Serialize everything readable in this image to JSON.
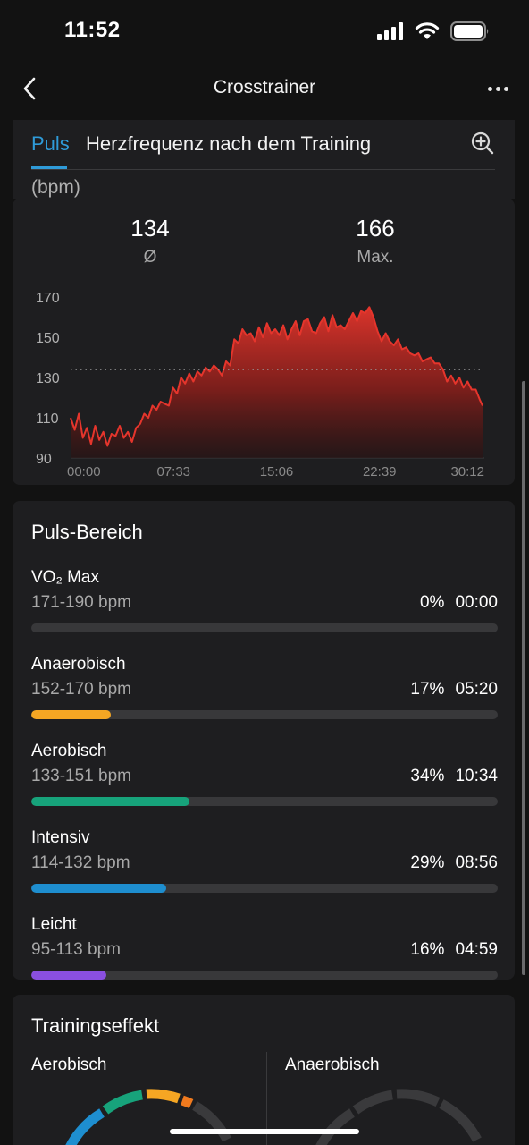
{
  "status_bar": {
    "time": "11:52"
  },
  "nav": {
    "title": "Crosstrainer"
  },
  "tabs": {
    "active": "Puls",
    "title": "Herzfrequenz nach dem Training",
    "unit": "(bpm)"
  },
  "summary": {
    "avg_value": "134",
    "avg_label": "Ø",
    "max_value": "166",
    "max_label": "Max."
  },
  "chart_data": {
    "type": "area",
    "title": "",
    "xlabel": "",
    "ylabel": "",
    "y_ticks": [
      "170",
      "150",
      "130",
      "110",
      "90"
    ],
    "x_ticks": [
      "00:00",
      "07:33",
      "15:06",
      "22:39",
      "30:12"
    ],
    "ylim": [
      90,
      170
    ],
    "xlim_minutes": [
      0,
      30.2
    ],
    "avg_reference_line": 134,
    "color": "#e5352c",
    "series": [
      {
        "x_minutes": [
          0,
          0.3,
          0.6,
          0.9,
          1.2,
          1.5,
          1.8,
          2.1,
          2.4,
          2.7,
          3.0,
          3.3,
          3.6,
          3.9,
          4.2,
          4.5,
          4.8,
          5.1,
          5.4,
          5.7,
          6.0,
          6.3,
          6.6,
          6.9,
          7.2,
          7.5,
          7.8,
          8.1,
          8.4,
          8.7,
          9.0,
          9.3,
          9.6,
          9.9,
          10.2,
          10.5,
          10.8,
          11.1,
          11.4,
          11.7,
          12.0,
          12.3,
          12.6,
          12.9,
          13.2,
          13.5,
          13.8,
          14.1,
          14.4,
          14.7,
          15.0,
          15.3,
          15.6,
          15.9,
          16.2,
          16.5,
          16.8,
          17.1,
          17.4,
          17.7,
          18.0,
          18.3,
          18.6,
          18.9,
          19.2,
          19.5,
          19.8,
          20.1,
          20.4,
          20.7,
          21.0,
          21.3,
          21.6,
          21.9,
          22.2,
          22.5,
          22.8,
          23.1,
          23.4,
          23.7,
          24.0,
          24.3,
          24.6,
          24.9,
          25.2,
          25.5,
          25.8,
          26.1,
          26.4,
          26.7,
          27.0,
          27.3,
          27.6,
          27.9,
          28.2,
          28.5,
          28.8,
          29.1,
          29.4,
          29.7,
          30.0,
          30.2
        ],
        "y": [
          110,
          104,
          112,
          100,
          105,
          97,
          106,
          99,
          103,
          96,
          102,
          101,
          106,
          100,
          103,
          98,
          105,
          107,
          112,
          110,
          116,
          114,
          118,
          117,
          116,
          125,
          122,
          130,
          127,
          132,
          128,
          133,
          131,
          135,
          133,
          136,
          134,
          131,
          138,
          136,
          149,
          147,
          154,
          151,
          152,
          148,
          155,
          150,
          157,
          152,
          154,
          151,
          156,
          149,
          154,
          158,
          151,
          158,
          159,
          153,
          152,
          157,
          160,
          153,
          161,
          155,
          156,
          154,
          158,
          162,
          158,
          163,
          162,
          165,
          160,
          153,
          148,
          152,
          148,
          146,
          149,
          144,
          145,
          142,
          141,
          142,
          138,
          139,
          140,
          137,
          137,
          134,
          128,
          131,
          127,
          130,
          125,
          128,
          124,
          124,
          119,
          116
        ]
      }
    ]
  },
  "zones_card": {
    "title": "Puls-Bereich",
    "zones": [
      {
        "name": "VO₂ Max",
        "range": "171-190 bpm",
        "percent": "0%",
        "time": "00:00",
        "fraction": 0.0,
        "color": "#c22a2a"
      },
      {
        "name": "Anaerobisch",
        "range": "152-170 bpm",
        "percent": "17%",
        "time": "05:20",
        "fraction": 0.17,
        "color": "#f5a623"
      },
      {
        "name": "Aerobisch",
        "range": "133-151 bpm",
        "percent": "34%",
        "time": "10:34",
        "fraction": 0.34,
        "color": "#17a37b"
      },
      {
        "name": "Intensiv",
        "range": "114-132 bpm",
        "percent": "29%",
        "time": "08:56",
        "fraction": 0.29,
        "color": "#1e8ecf"
      },
      {
        "name": "Leicht",
        "range": "95-113 bpm",
        "percent": "16%",
        "time": "04:59",
        "fraction": 0.16,
        "color": "#8a4fe0"
      }
    ]
  },
  "training_effect": {
    "title": "Trainingseffekt",
    "aerobic_label": "Aerobisch",
    "anaerobic_label": "Anaerobisch"
  }
}
